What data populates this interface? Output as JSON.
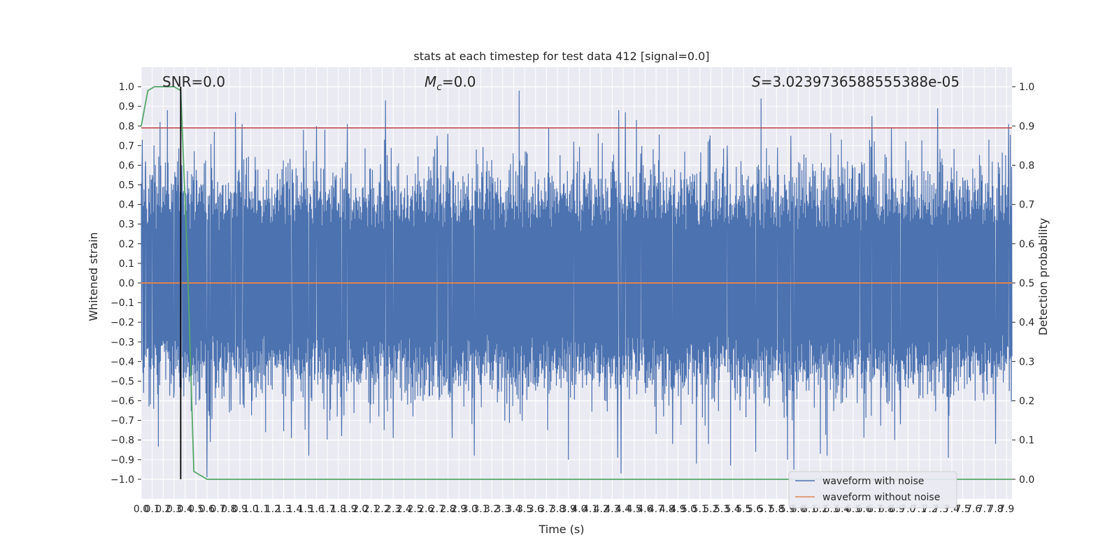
{
  "chart_data": {
    "type": "line",
    "title": "stats at each timestep for test data 412 [signal=0.0]",
    "xlabel": "Time (s)",
    "ylabel": "Whitened strain",
    "y2label": "Detection probability",
    "xlim": [
      0.0,
      7.95
    ],
    "ylim": [
      -1.1,
      1.1
    ],
    "y2lim": [
      -0.05,
      1.05
    ],
    "x_ticks": [
      "0.0",
      "0.1",
      "0.2",
      "0.3",
      "0.4",
      "0.5",
      "0.6",
      "0.7",
      "0.8",
      "0.9",
      "1.0",
      "1.1",
      "1.2",
      "1.3",
      "1.4",
      "1.5",
      "1.6",
      "1.7",
      "1.8",
      "1.9",
      "2.0",
      "2.1",
      "2.2",
      "2.3",
      "2.4",
      "2.5",
      "2.6",
      "2.7",
      "2.8",
      "2.9",
      "3.0",
      "3.1",
      "3.2",
      "3.3",
      "3.4",
      "3.5",
      "3.6",
      "3.7",
      "3.8",
      "3.9",
      "4.0",
      "4.1",
      "4.2",
      "4.3",
      "4.4",
      "4.5",
      "4.6",
      "4.7",
      "4.8",
      "4.9",
      "5.0",
      "5.1",
      "5.2",
      "5.3",
      "5.4",
      "5.5",
      "5.6",
      "5.7",
      "5.8",
      "5.9",
      "6.0",
      "6.1",
      "6.2",
      "6.3",
      "6.4",
      "6.5",
      "6.6",
      "6.7",
      "6.8",
      "6.9",
      "7.0",
      "7.1",
      "7.2",
      "7.3",
      "7.4",
      "7.5",
      "7.6",
      "7.7",
      "7.8",
      "7.9"
    ],
    "y_ticks": [
      "1.0",
      "0.9",
      "0.8",
      "0.7",
      "0.6",
      "0.5",
      "0.4",
      "0.3",
      "0.2",
      "0.1",
      "0.0",
      "−0.1",
      "−0.2",
      "−0.3",
      "−0.4",
      "−0.5",
      "−0.6",
      "−0.7",
      "−0.8",
      "−0.9",
      "−1.0"
    ],
    "y2_ticks": [
      "1.0",
      "0.9",
      "0.8",
      "0.7",
      "0.6",
      "0.5",
      "0.4",
      "0.3",
      "0.2",
      "0.1",
      "0.0"
    ],
    "grid": true,
    "legend_position": "bottom-right",
    "annotations": {
      "snr": "SNR=0.0",
      "mc_symbol": "M",
      "mc_sub": "c",
      "mc_value": "=0.0",
      "s_symbol": "S",
      "s_value": "=3.0239736588555388e-05"
    },
    "series": [
      {
        "name": "waveform with noise",
        "color": "#4c72b0",
        "axis": "left",
        "envelope_note": "dense noise, approximate spikes",
        "spikes_up": [
          [
            0.01,
            0.73
          ],
          [
            0.04,
            0.62
          ],
          [
            0.1,
            0.55
          ],
          [
            0.17,
            0.82
          ],
          [
            0.24,
            0.88
          ],
          [
            0.33,
            0.62
          ],
          [
            0.37,
            0.6
          ],
          [
            0.6,
            0.69
          ],
          [
            0.86,
            0.87
          ],
          [
            0.92,
            0.81
          ],
          [
            1.38,
            0.58
          ],
          [
            1.48,
            0.78
          ],
          [
            1.6,
            0.8
          ],
          [
            1.88,
            0.81
          ],
          [
            2.22,
            0.73
          ],
          [
            2.23,
            0.93
          ],
          [
            2.7,
            0.75
          ],
          [
            2.8,
            0.76
          ],
          [
            3.06,
            0.68
          ],
          [
            3.45,
            0.98
          ],
          [
            3.72,
            0.79
          ],
          [
            3.95,
            0.72
          ],
          [
            4.36,
            0.88
          ],
          [
            4.42,
            0.87
          ],
          [
            4.52,
            0.83
          ],
          [
            4.56,
            0.66
          ],
          [
            5.35,
            0.7
          ],
          [
            5.66,
            0.94
          ],
          [
            5.81,
            0.69
          ],
          [
            5.93,
            0.75
          ],
          [
            6.27,
            0.55
          ],
          [
            6.56,
            0.56
          ],
          [
            6.6,
            0.61
          ],
          [
            6.67,
            0.85
          ],
          [
            6.85,
            0.79
          ],
          [
            7.27,
            0.89
          ],
          [
            7.74,
            0.73
          ],
          [
            7.92,
            0.81
          ]
        ],
        "spikes_down": [
          [
            0.02,
            -0.56
          ],
          [
            0.07,
            -0.63
          ],
          [
            0.3,
            -0.55
          ],
          [
            0.6,
            -0.99
          ],
          [
            0.63,
            -0.81
          ],
          [
            0.82,
            -0.65
          ],
          [
            0.93,
            -0.62
          ],
          [
            1.37,
            -0.79
          ],
          [
            1.53,
            -0.88
          ],
          [
            1.83,
            -0.78
          ],
          [
            2.17,
            -0.68
          ],
          [
            2.3,
            -0.79
          ],
          [
            2.84,
            -0.79
          ],
          [
            3.04,
            -0.88
          ],
          [
            3.71,
            -0.75
          ],
          [
            3.9,
            -0.9
          ],
          [
            4.35,
            -0.89
          ],
          [
            4.38,
            -0.97
          ],
          [
            4.77,
            -0.68
          ],
          [
            4.85,
            -0.82
          ],
          [
            5.07,
            -0.92
          ],
          [
            5.18,
            -0.82
          ],
          [
            5.38,
            -0.93
          ],
          [
            5.61,
            -0.86
          ],
          [
            5.9,
            -0.9
          ],
          [
            5.96,
            -0.95
          ],
          [
            6.2,
            -0.87
          ],
          [
            6.26,
            -0.88
          ],
          [
            6.88,
            -0.8
          ],
          [
            6.93,
            -0.72
          ],
          [
            7.37,
            -0.89
          ],
          [
            7.8,
            -0.82
          ]
        ]
      },
      {
        "name": "waveform without noise",
        "color": "#dd8452",
        "axis": "left",
        "x": [
          0.0,
          7.95
        ],
        "y": [
          0.0,
          0.0
        ]
      },
      {
        "name": "",
        "color": "#55a868",
        "axis": "right",
        "x": [
          0.0,
          0.06,
          0.12,
          0.18,
          0.24,
          0.3,
          0.36,
          0.42,
          0.48,
          0.54,
          0.6,
          0.7,
          1.0,
          2.0,
          3.0,
          4.0,
          5.0,
          6.0,
          7.0,
          7.95
        ],
        "y": [
          0.9,
          0.99,
          1.0,
          1.0,
          1.0,
          1.0,
          0.99,
          0.57,
          0.02,
          0.01,
          0.0,
          0.0,
          0.0,
          0.0,
          0.0,
          0.0,
          0.0,
          0.0,
          0.0,
          0.0
        ]
      }
    ],
    "threshold": {
      "color": "#c44e52",
      "axis": "left",
      "value": 0.79
    },
    "marker_line": {
      "color": "#000000",
      "x": 0.36,
      "y_range": [
        -1.0,
        1.0
      ]
    }
  }
}
